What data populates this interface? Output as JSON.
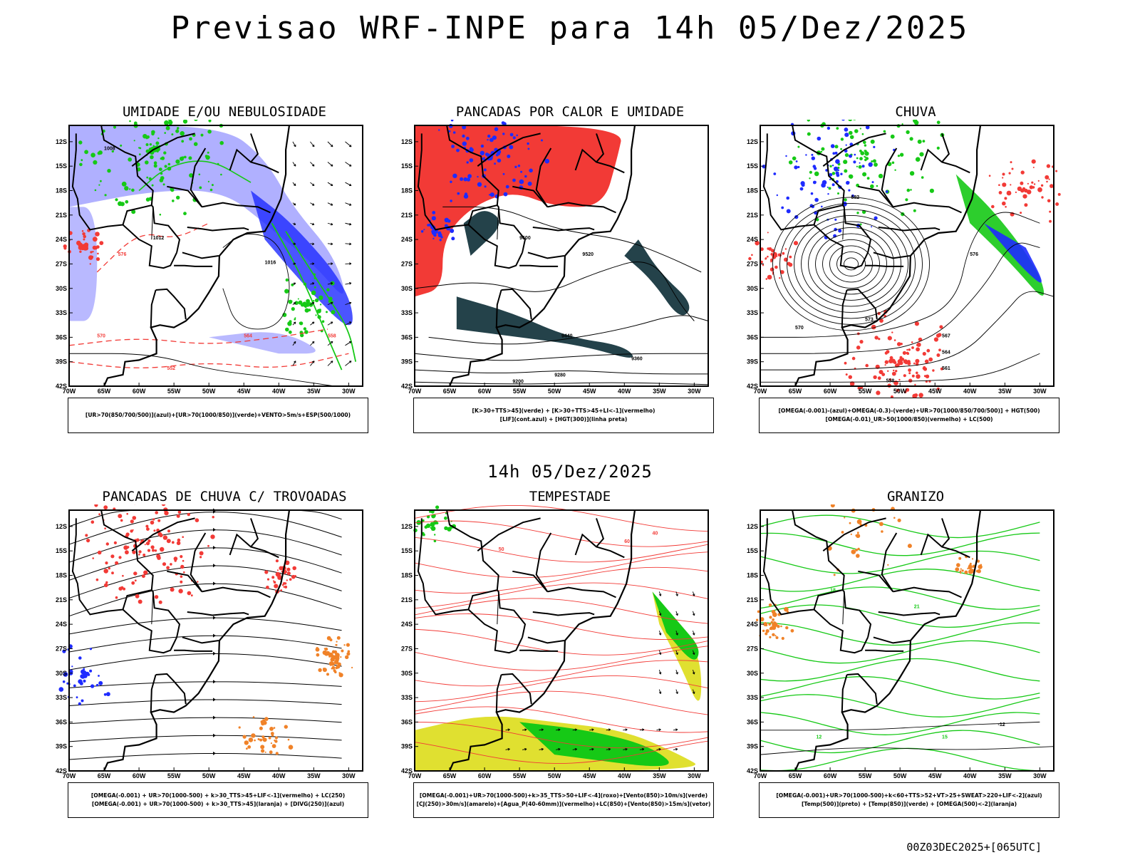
{
  "title": "Previsao WRF-INPE  para 14h 05/Dez/2025",
  "subtitle": "14h 05/Dez/2025",
  "footer": "00Z03DEC2025+[065UTC]",
  "axes": {
    "lat_labels": [
      "12S",
      "15S",
      "18S",
      "21S",
      "24S",
      "27S",
      "30S",
      "33S",
      "36S",
      "39S",
      "42S"
    ],
    "lon_labels": [
      "70W",
      "65W",
      "60W",
      "55W",
      "50W",
      "45W",
      "40W",
      "35W",
      "30W"
    ]
  },
  "colors": {
    "blue": "#1e2bff",
    "lightblue": "#a7a7ff",
    "green": "#16c916",
    "red": "#f23a36",
    "orange": "#f08228",
    "yellow": "#e0e030",
    "darkteal": "#24424a"
  },
  "panels": [
    {
      "id": "umidade",
      "title": "UMIDADE E/OU NEBULOSIDADE",
      "legend": [
        "[UR>70(850/700/500)](azul)+[UR>70(1000/850)](verde)+VENTO>5m/s+ESP(500/1000)"
      ],
      "contour_labels": [
        "1008",
        "1012",
        "1016",
        "576",
        "570",
        "564",
        "558",
        "552"
      ]
    },
    {
      "id": "pancadas-calor",
      "title": "PANCADAS POR CALOR E UMIDADE",
      "legend": [
        "[K>30+TTS>45](verde) + [K>30+TTS>45+LI<-1](vermelho)",
        "[LIF](cont.azul) + [HGT(300)](linha preta)"
      ],
      "contour_labels": [
        "9600",
        "9520",
        "9440",
        "9360",
        "9280",
        "9200"
      ]
    },
    {
      "id": "chuva",
      "title": "CHUVA",
      "legend": [
        "[OMEGA(-0.001)-(azul)+OMEGA(-0.3)-(verde)+UR>70(1000/850/700/500)] + HGT(500)",
        "[OMEGA(-0.01)_UR>50(1000/850)(vermelho) + LC(500)"
      ],
      "contour_labels": [
        "582",
        "576",
        "573",
        "570",
        "567",
        "564",
        "561",
        "558"
      ]
    },
    {
      "id": "trovoadas",
      "title": "PANCADAS DE CHUVA C/ TROVOADAS",
      "legend": [
        "[OMEGA(-0.001) + UR>70(1000-500) + k>30_TTS>45+LIF<-1](vermelho) + LC(250)",
        "[OMEGA(-0.001) + UR>70(1000-500) + k>30_TTS>45](laranja) + [DIVG(250)](azul)"
      ],
      "contour_labels": []
    },
    {
      "id": "tempestade",
      "title": "TEMPESTADE",
      "legend": [
        "[OMEGA(-0.001)+UR>70(1000-500)+k>35_TTS>50+LIF<-4](roxo)+[Vento(850)>10m/s](verde)",
        "[CJ(250)>30m/s](amarelo)+[Agua_P(40-60mm)](vermelho)+LC(850)+[Vento(850)>15m/s](vetor)"
      ],
      "contour_labels": [
        "40",
        "50",
        "60"
      ]
    },
    {
      "id": "granizo",
      "title": "GRANIZO",
      "legend": [
        "[OMEGA(-0.001)+UR>70(1000-500)+k<60+TTS>52+VT>25+SWEAT>220+LIF<-2](azul)",
        "[Temp(500)](preto) + [Temp(850)](verde) + [OMEGA(500)<-2](laranja)"
      ],
      "contour_labels": [
        "-12",
        "12",
        "15",
        "18",
        "21"
      ]
    }
  ]
}
